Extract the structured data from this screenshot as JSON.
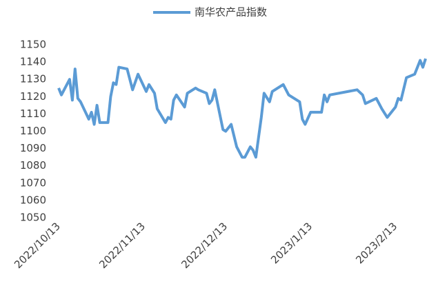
{
  "chart_data": {
    "type": "line",
    "series": [
      {
        "name": "南华农产品指数",
        "color": "#5b9bd5",
        "x": [
          "2022/10/13",
          "2022/10/14",
          "2022/10/17",
          "2022/10/18",
          "2022/10/19",
          "2022/10/20",
          "2022/10/21",
          "2022/10/24",
          "2022/10/25",
          "2022/10/26",
          "2022/10/27",
          "2022/10/28",
          "2022/10/31",
          "2022/11/1",
          "2022/11/2",
          "2022/11/3",
          "2022/11/4",
          "2022/11/7",
          "2022/11/9",
          "2022/11/11",
          "2022/11/14",
          "2022/11/15",
          "2022/11/17",
          "2022/11/18",
          "2022/11/21",
          "2022/11/22",
          "2022/11/23",
          "2022/11/24",
          "2022/11/25",
          "2022/11/28",
          "2022/11/29",
          "2022/12/2",
          "2022/12/3",
          "2022/12/6",
          "2022/12/7",
          "2022/12/8",
          "2022/12/9",
          "2022/12/12",
          "2022/12/13",
          "2022/12/15",
          "2022/12/17",
          "2022/12/19",
          "2022/12/20",
          "2022/12/22",
          "2022/12/23",
          "2022/12/24",
          "2022/12/26",
          "2022/12/27",
          "2022/12/29",
          "2022/12/30",
          "2023/1/3",
          "2023/1/5",
          "2023/1/9",
          "2023/1/10",
          "2023/1/11",
          "2023/1/13",
          "2023/1/17",
          "2023/1/18",
          "2023/1/19",
          "2023/1/20",
          "2023/1/30",
          "2023/2/1",
          "2023/2/2",
          "2023/2/6",
          "2023/2/8",
          "2023/2/10",
          "2023/2/13",
          "2023/2/14",
          "2023/2/15",
          "2023/2/17",
          "2023/2/20",
          "2023/2/22",
          "2023/2/23",
          "2023/2/24"
        ],
        "values": [
          1125,
          1121,
          1130,
          1118,
          1136,
          1119,
          1117,
          1107,
          1111,
          1104,
          1115,
          1105,
          1105,
          1120,
          1128,
          1127,
          1137,
          1136,
          1124,
          1133,
          1123,
          1127,
          1122,
          1113,
          1105,
          1108,
          1107,
          1118,
          1121,
          1114,
          1122,
          1125,
          1124,
          1122,
          1116,
          1118,
          1124,
          1101,
          1100,
          1104,
          1091,
          1085,
          1085,
          1091,
          1089,
          1085,
          1108,
          1122,
          1117,
          1123,
          1127,
          1121,
          1117,
          1107,
          1104,
          1111,
          1111,
          1121,
          1117,
          1121,
          1124,
          1121,
          1116,
          1119,
          1113,
          1108,
          1114,
          1119,
          1118,
          1131,
          1133,
          1141,
          1137,
          1142
        ]
      }
    ],
    "xlim": [
      "2022/10/13",
      "2023/2/24"
    ],
    "xticks": [
      "2022/10/13",
      "2022/11/13",
      "2022/12/13",
      "2023/1/13",
      "2023/2/13"
    ],
    "ylim": [
      1050,
      1150
    ],
    "yticks": [
      1050,
      1060,
      1070,
      1080,
      1090,
      1100,
      1110,
      1120,
      1130,
      1140,
      1150
    ],
    "legend": "top"
  }
}
